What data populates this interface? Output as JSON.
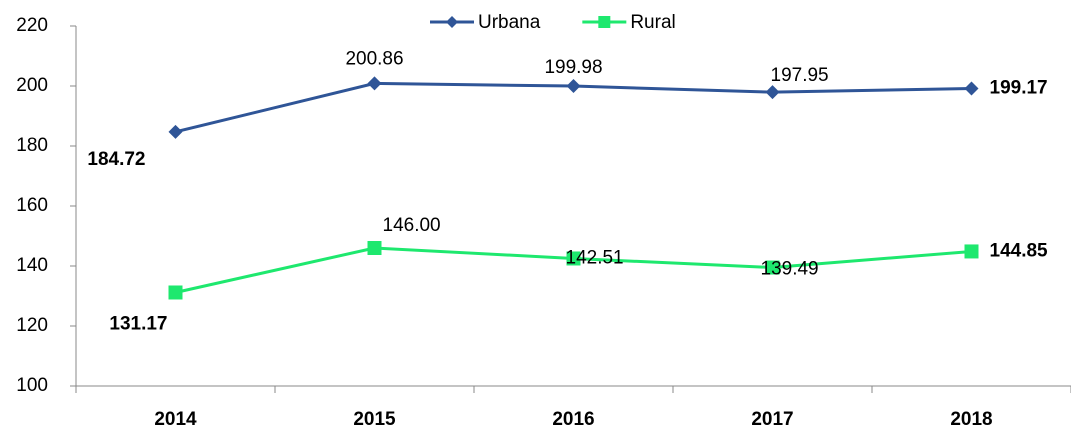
{
  "chart_data": {
    "type": "line",
    "categories": [
      "2014",
      "2015",
      "2016",
      "2017",
      "2018"
    ],
    "series": [
      {
        "name": "Urbana",
        "color": "#2f5597",
        "marker": "diamond",
        "values": [
          184.72,
          200.86,
          199.98,
          197.95,
          199.17
        ],
        "value_labels": [
          "184.72",
          "200.86",
          "199.98",
          "197.95",
          "199.17"
        ]
      },
      {
        "name": "Rural",
        "color": "#1ee86e",
        "marker": "square",
        "values": [
          131.17,
          146.0,
          142.51,
          139.49,
          144.85
        ],
        "value_labels": [
          "131.17",
          "146.00",
          "142.51",
          "139.49",
          "144.85"
        ]
      }
    ],
    "ylim": [
      100,
      220
    ],
    "yticks": [
      100,
      120,
      140,
      160,
      180,
      200,
      220
    ],
    "grid": false,
    "legend": "top"
  }
}
